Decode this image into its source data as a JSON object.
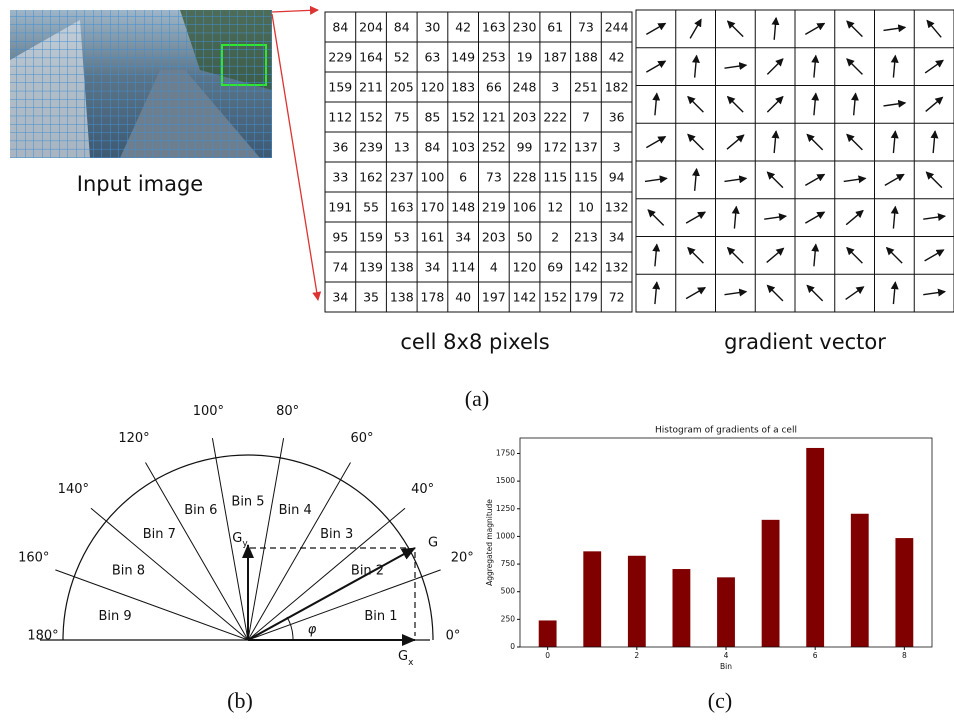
{
  "input_image": {
    "label": "Input image"
  },
  "pixel_table": {
    "label": "cell 8x8 pixels",
    "rows": [
      [
        "84",
        "204",
        "84",
        "30",
        "42",
        "163",
        "230",
        "61",
        "73",
        "244"
      ],
      [
        "229",
        "164",
        "52",
        "63",
        "149",
        "253",
        "19",
        "187",
        "188",
        "42"
      ],
      [
        "159",
        "211",
        "205",
        "120",
        "183",
        "66",
        "248",
        "3",
        "251",
        "182"
      ],
      [
        "112",
        "152",
        "75",
        "85",
        "152",
        "121",
        "203",
        "222",
        "7",
        "36"
      ],
      [
        "36",
        "239",
        "13",
        "84",
        "103",
        "252",
        "99",
        "172",
        "137",
        "3"
      ],
      [
        "33",
        "162",
        "237",
        "100",
        "6",
        "73",
        "228",
        "115",
        "115",
        "94"
      ],
      [
        "191",
        "55",
        "163",
        "170",
        "148",
        "219",
        "106",
        "12",
        "10",
        "132"
      ],
      [
        "95",
        "159",
        "53",
        "161",
        "34",
        "203",
        "50",
        "2",
        "213",
        "34"
      ],
      [
        "74",
        "139",
        "138",
        "34",
        "114",
        "4",
        "120",
        "69",
        "142",
        "132"
      ],
      [
        "34",
        "35",
        "138",
        "178",
        "40",
        "197",
        "142",
        "152",
        "179",
        "72"
      ]
    ]
  },
  "gradient_vector": {
    "label": "gradient vector",
    "angles": [
      [
        30,
        60,
        135,
        85,
        30,
        135,
        8,
        130
      ],
      [
        30,
        85,
        8,
        45,
        85,
        135,
        85,
        35
      ],
      [
        85,
        135,
        135,
        45,
        85,
        85,
        8,
        40
      ],
      [
        30,
        135,
        40,
        85,
        135,
        135,
        85,
        85
      ],
      [
        8,
        85,
        8,
        135,
        30,
        8,
        30,
        135
      ],
      [
        135,
        30,
        85,
        8,
        30,
        40,
        85,
        8
      ],
      [
        85,
        135,
        135,
        40,
        85,
        135,
        135,
        30
      ],
      [
        85,
        30,
        8,
        135,
        135,
        35,
        85,
        8
      ]
    ]
  },
  "caption_a": "(a)",
  "diagram": {
    "angles": [
      {
        "value": 0,
        "label": "0°"
      },
      {
        "value": 20,
        "label": "20°"
      },
      {
        "value": 40,
        "label": "40°"
      },
      {
        "value": 60,
        "label": "60°"
      },
      {
        "value": 80,
        "label": "80°"
      },
      {
        "value": 100,
        "label": "100°"
      },
      {
        "value": 120,
        "label": "120°"
      },
      {
        "value": 140,
        "label": "140°"
      },
      {
        "value": 160,
        "label": "160°"
      },
      {
        "value": 180,
        "label": "180°"
      }
    ],
    "bins": [
      "Bin 1",
      "Bin 2",
      "Bin 3",
      "Bin 4",
      "Bin 5",
      "Bin 6",
      "Bin 7",
      "Bin 8",
      "Bin 9"
    ],
    "g": "G",
    "gy": {
      "symbol": "G",
      "subscript": "y"
    },
    "gx": {
      "symbol": "G",
      "subscript": "x"
    },
    "phi": "φ"
  },
  "caption_b": "(b)",
  "caption_c": "(c)",
  "chart_data": {
    "type": "bar",
    "title": "Histogram of gradients of a cell",
    "x_label": "Bin",
    "y_label": "Aggregated magnitude",
    "x": [
      0,
      1,
      2,
      3,
      4,
      5,
      6,
      7,
      8
    ],
    "values": [
      240,
      865,
      825,
      705,
      630,
      1150,
      1800,
      1205,
      985
    ],
    "color": "#800000",
    "xlim": [
      -0.62,
      8.62
    ],
    "xticks": [
      0,
      2,
      4,
      6,
      8
    ],
    "ylim": [
      0,
      1890
    ],
    "yticks": [
      0,
      250,
      500,
      750,
      1000,
      1250,
      1500,
      1750
    ]
  }
}
